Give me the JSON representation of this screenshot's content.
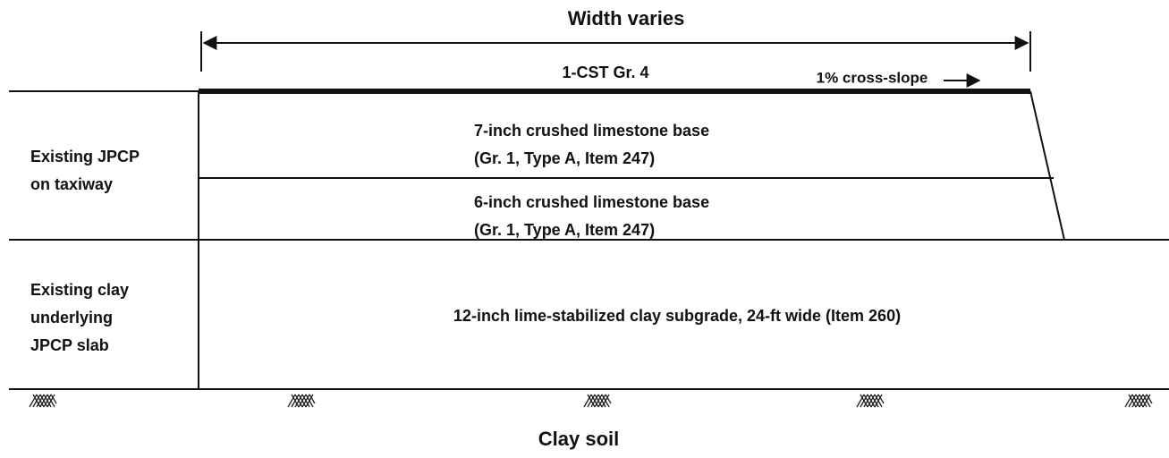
{
  "title": "Width varies",
  "surface": {
    "label": "1-CST Gr. 4",
    "slope": "1% cross-slope"
  },
  "layers": [
    {
      "lines": [
        "7-inch crushed limestone base",
        "(Gr. 1, Type A, Item 247)"
      ]
    },
    {
      "lines": [
        "6-inch crushed limestone base",
        "(Gr. 1, Type A, Item 247)"
      ]
    },
    {
      "lines": [
        "12-inch lime-stabilized clay subgrade, 24-ft wide (Item 260)"
      ]
    }
  ],
  "existing": [
    {
      "lines": [
        "Existing JPCP",
        "on taxiway"
      ]
    },
    {
      "lines": [
        "Existing clay",
        "underlying",
        "JPCP slab"
      ]
    }
  ],
  "foundation": "Clay soil"
}
